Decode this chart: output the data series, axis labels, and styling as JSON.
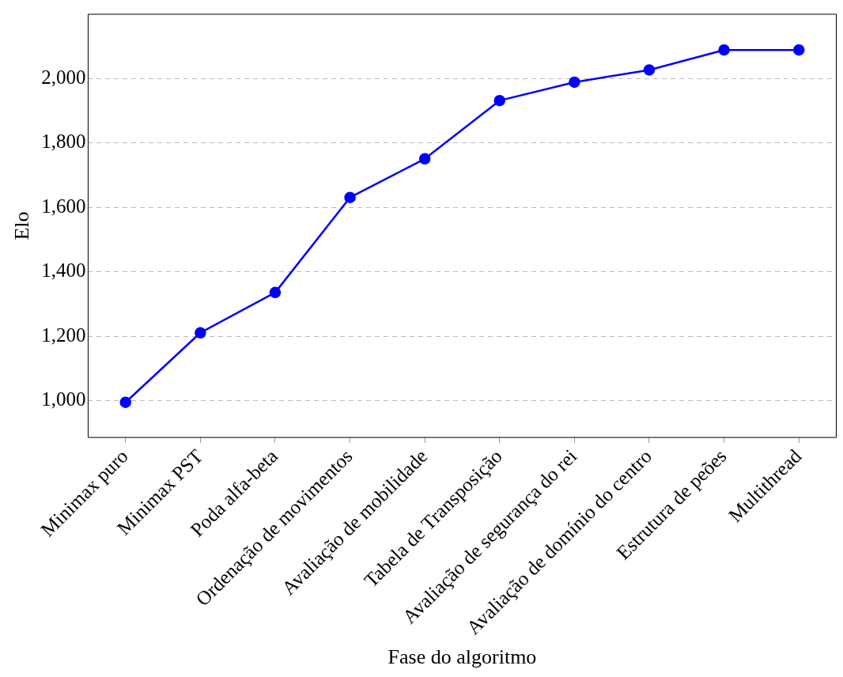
{
  "chart_data": {
    "type": "line",
    "xlabel": "Fase do algoritmo",
    "ylabel": "Elo",
    "categories": [
      "Minimax puro",
      "Minimax PST",
      "Poda alfa-beta",
      "Ordenação de movimentos",
      "Avaliação de mobilidade",
      "Tabela de Transposição",
      "Avaliação de segurança do rei",
      "Avaliação de domínio do centro",
      "Estrutura de peões",
      "Multithread"
    ],
    "series": [
      {
        "color": "#0000ff",
        "values": [
          995,
          1211,
          1336,
          1631,
          1751,
          1932,
          1989,
          2027,
          2089,
          2089
        ]
      }
    ],
    "ylim": [
      886,
      2200
    ],
    "yticks": [
      {
        "value": 1000,
        "label": "1,000"
      },
      {
        "value": 1200,
        "label": "1,200"
      },
      {
        "value": 1400,
        "label": "1,400"
      },
      {
        "value": 1600,
        "label": "1,600"
      },
      {
        "value": 1800,
        "label": "1,800"
      },
      {
        "value": 2000,
        "label": "2,000"
      }
    ],
    "grid": "y",
    "legend": false,
    "marker": "circle",
    "line_style": "solid"
  }
}
